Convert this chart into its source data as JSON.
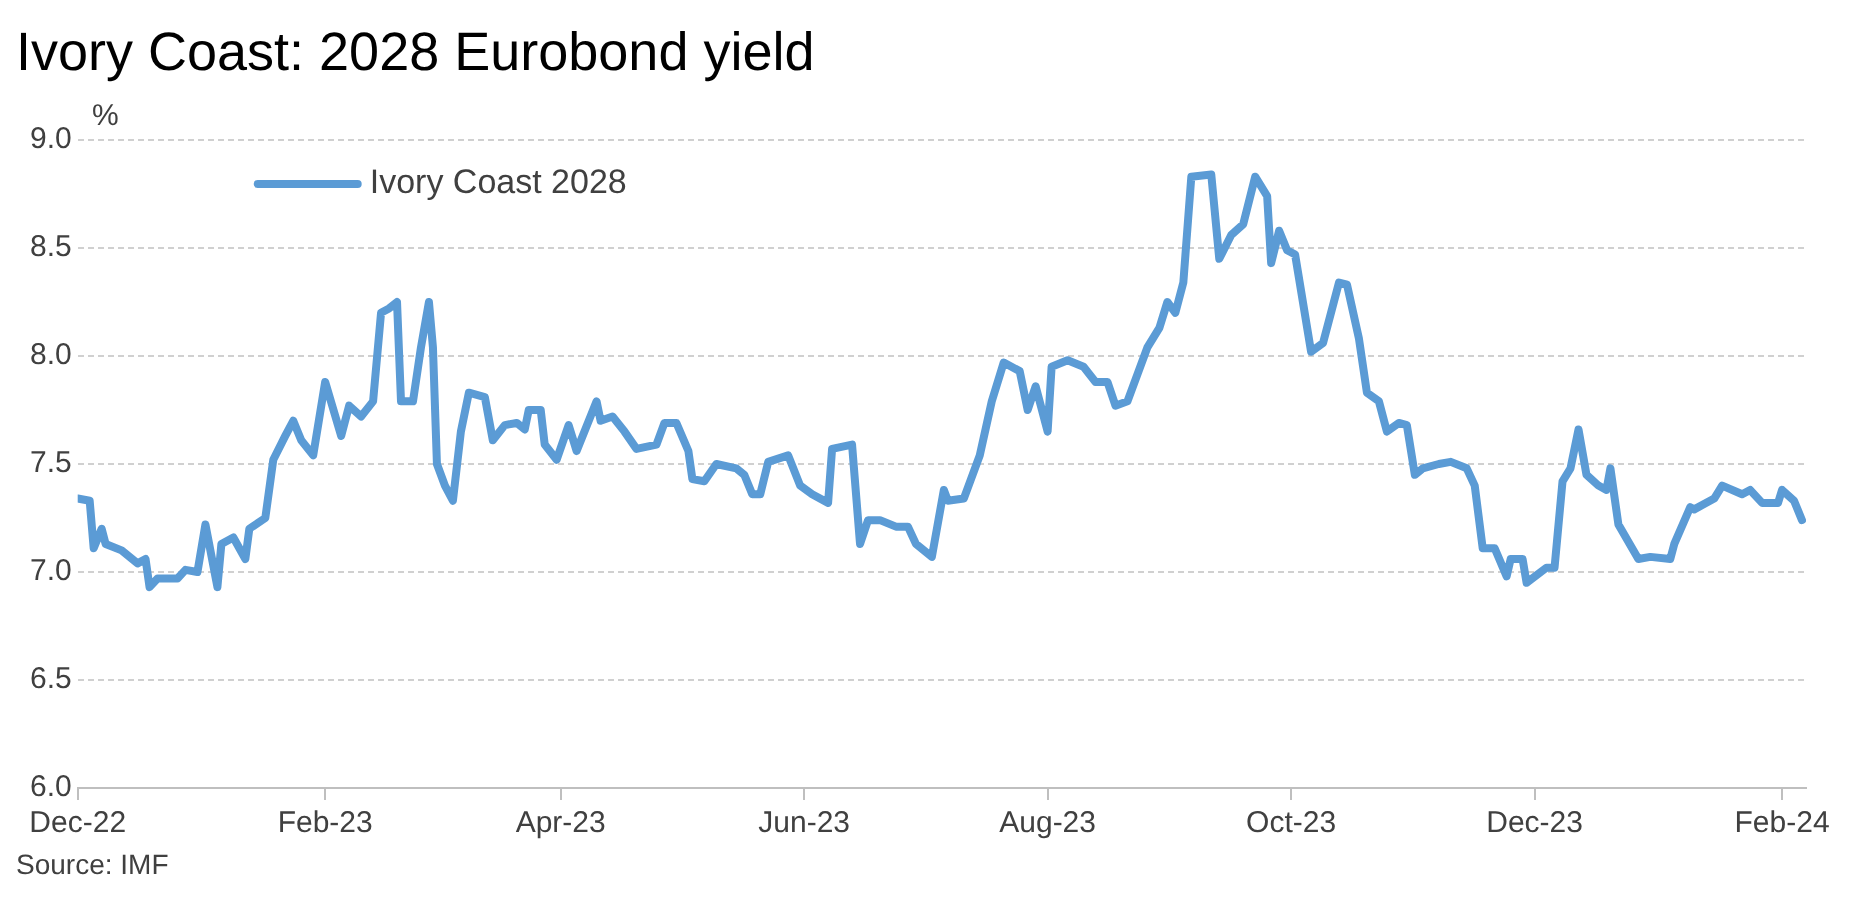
{
  "chart_data": {
    "type": "line",
    "title": "Ivory Coast:  2028 Eurobond yield",
    "ylabel": "%",
    "annotations": [
      "Source: IMF"
    ],
    "legend": "top left",
    "grid": "y",
    "marker": "none",
    "line_style": "solid",
    "xlim": [
      "2022-12-01",
      "2024-02-07"
    ],
    "xticks": [
      {
        "value": "2022-12-01",
        "label": "Dec-22"
      },
      {
        "value": "2023-02-01",
        "label": "Feb-23"
      },
      {
        "value": "2023-04-01",
        "label": "Apr-23"
      },
      {
        "value": "2023-06-01",
        "label": "Jun-23"
      },
      {
        "value": "2023-08-01",
        "label": "Aug-23"
      },
      {
        "value": "2023-10-01",
        "label": "Oct-23"
      },
      {
        "value": "2023-12-01",
        "label": "Dec-23"
      },
      {
        "value": "2024-02-01",
        "label": "Feb-24"
      }
    ],
    "ylim": [
      6,
      9
    ],
    "yticks": [
      {
        "value": 6,
        "label": "6.0"
      },
      {
        "value": 6.5,
        "label": "6.5"
      },
      {
        "value": 7,
        "label": "7.0"
      },
      {
        "value": 7.5,
        "label": "7.5"
      },
      {
        "value": 8,
        "label": "8.0"
      },
      {
        "value": 8.5,
        "label": "8.5"
      },
      {
        "value": 9,
        "label": "9.0"
      }
    ],
    "x": [
      "2022-12-01",
      "2022-12-04",
      "2022-12-05",
      "2022-12-07",
      "2022-12-08",
      "2022-12-12",
      "2022-12-16",
      "2022-12-18",
      "2022-12-19",
      "2022-12-21",
      "2022-12-26",
      "2022-12-28",
      "2022-12-31",
      "2023-01-02",
      "2023-01-05",
      "2023-01-06",
      "2023-01-09",
      "2023-01-12",
      "2023-01-13",
      "2023-01-17",
      "2023-01-19",
      "2023-01-22",
      "2023-01-24",
      "2023-01-26",
      "2023-01-29",
      "2023-02-01",
      "2023-02-05",
      "2023-02-07",
      "2023-02-10",
      "2023-02-13",
      "2023-02-15",
      "2023-02-17",
      "2023-02-19",
      "2023-02-20",
      "2023-02-23",
      "2023-02-25",
      "2023-02-27",
      "2023-02-28",
      "2023-03-01",
      "2023-03-03",
      "2023-03-05",
      "2023-03-07",
      "2023-03-09",
      "2023-03-13",
      "2023-03-15",
      "2023-03-18",
      "2023-03-21",
      "2023-03-23",
      "2023-03-24",
      "2023-03-27",
      "2023-03-28",
      "2023-03-31",
      "2023-04-03",
      "2023-04-05",
      "2023-04-10",
      "2023-04-11",
      "2023-04-14",
      "2023-04-17",
      "2023-04-20",
      "2023-04-25",
      "2023-04-27",
      "2023-04-30",
      "2023-05-03",
      "2023-05-04",
      "2023-05-07",
      "2023-05-10",
      "2023-05-15",
      "2023-05-17",
      "2023-05-19",
      "2023-05-21",
      "2023-05-23",
      "2023-05-28",
      "2023-05-31",
      "2023-06-03",
      "2023-06-07",
      "2023-06-08",
      "2023-06-13",
      "2023-06-15",
      "2023-06-17",
      "2023-06-20",
      "2023-06-24",
      "2023-06-27",
      "2023-06-29",
      "2023-07-01",
      "2023-07-03",
      "2023-07-06",
      "2023-07-07",
      "2023-07-11",
      "2023-07-15",
      "2023-07-18",
      "2023-07-21",
      "2023-07-25",
      "2023-07-27",
      "2023-07-29",
      "2023-08-01",
      "2023-08-02",
      "2023-08-06",
      "2023-08-10",
      "2023-08-13",
      "2023-08-16",
      "2023-08-18",
      "2023-08-21",
      "2023-08-26",
      "2023-08-29",
      "2023-08-31",
      "2023-09-02",
      "2023-09-04",
      "2023-09-06",
      "2023-09-11",
      "2023-09-13",
      "2023-09-16",
      "2023-09-19",
      "2023-09-22",
      "2023-09-25",
      "2023-09-26",
      "2023-09-28",
      "2023-09-30",
      "2023-10-02",
      "2023-10-06",
      "2023-10-09",
      "2023-10-13",
      "2023-10-15",
      "2023-10-18",
      "2023-10-20",
      "2023-10-23",
      "2023-10-25",
      "2023-10-28",
      "2023-10-30",
      "2023-11-01",
      "2023-11-03",
      "2023-11-07",
      "2023-11-10",
      "2023-11-14",
      "2023-11-16",
      "2023-11-18",
      "2023-11-21",
      "2023-11-24",
      "2023-11-25",
      "2023-11-28",
      "2023-11-29",
      "2023-12-04",
      "2023-12-06",
      "2023-12-08",
      "2023-12-10",
      "2023-12-12",
      "2023-12-14",
      "2023-12-17",
      "2023-12-19",
      "2023-12-20",
      "2023-12-22",
      "2023-12-27",
      "2023-12-30",
      "2024-01-04",
      "2024-01-05",
      "2024-01-09",
      "2024-01-10",
      "2024-01-15",
      "2024-01-17",
      "2024-01-22",
      "2024-01-24",
      "2024-01-27",
      "2024-01-31",
      "2024-02-01",
      "2024-02-04",
      "2024-02-06"
    ],
    "series": [
      {
        "name": "Ivory Coast 2028",
        "color": "#5b9bd5",
        "values": [
          7.34,
          7.33,
          7.11,
          7.2,
          7.13,
          7.1,
          7.04,
          7.06,
          6.93,
          6.97,
          6.97,
          7.01,
          7.0,
          7.22,
          6.93,
          7.13,
          7.16,
          7.06,
          7.2,
          7.25,
          7.52,
          7.63,
          7.7,
          7.61,
          7.54,
          7.88,
          7.63,
          7.77,
          7.72,
          7.79,
          8.2,
          8.22,
          8.25,
          7.79,
          7.79,
          8.04,
          8.25,
          8.04,
          7.5,
          7.4,
          7.33,
          7.65,
          7.83,
          7.81,
          7.61,
          7.68,
          7.69,
          7.66,
          7.75,
          7.75,
          7.59,
          7.52,
          7.68,
          7.56,
          7.79,
          7.7,
          7.72,
          7.65,
          7.57,
          7.59,
          7.69,
          7.69,
          7.56,
          7.43,
          7.42,
          7.5,
          7.48,
          7.45,
          7.36,
          7.36,
          7.51,
          7.54,
          7.4,
          7.36,
          7.32,
          7.57,
          7.59,
          7.13,
          7.24,
          7.24,
          7.21,
          7.21,
          7.13,
          7.1,
          7.07,
          7.38,
          7.33,
          7.34,
          7.54,
          7.79,
          7.97,
          7.93,
          7.75,
          7.86,
          7.65,
          7.95,
          7.98,
          7.95,
          7.88,
          7.88,
          7.77,
          7.79,
          8.04,
          8.13,
          8.25,
          8.2,
          8.34,
          8.83,
          8.84,
          8.45,
          8.56,
          8.61,
          8.83,
          8.74,
          8.43,
          8.58,
          8.49,
          8.47,
          8.02,
          8.06,
          8.34,
          8.33,
          8.08,
          7.83,
          7.79,
          7.65,
          7.69,
          7.68,
          7.45,
          7.48,
          7.5,
          7.51,
          7.48,
          7.4,
          7.11,
          7.11,
          6.98,
          7.06,
          7.06,
          6.95,
          7.02,
          7.02,
          7.42,
          7.48,
          7.66,
          7.45,
          7.4,
          7.38,
          7.48,
          7.22,
          7.06,
          7.07,
          7.06,
          7.13,
          7.3,
          7.29,
          7.34,
          7.4,
          7.36,
          7.38,
          7.32,
          7.32,
          7.38,
          7.33,
          7.24
        ]
      }
    ]
  }
}
